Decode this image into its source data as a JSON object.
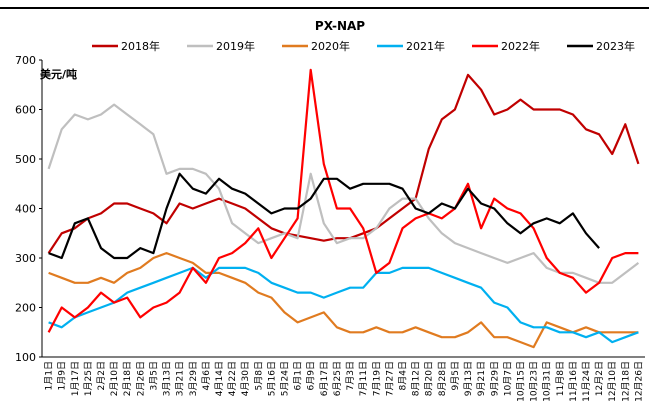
{
  "chart_data": {
    "type": "line",
    "title": "PX-NAP",
    "y_label": "美元/吨",
    "categories": [
      "1月1日",
      "1月9日",
      "1月17日",
      "1月25日",
      "2月2日",
      "2月10日",
      "2月18日",
      "2月26日",
      "3月5日",
      "3月13日",
      "3月21日",
      "3月29日",
      "4月6日",
      "4月14日",
      "4月22日",
      "4月30日",
      "5月8日",
      "5月16日",
      "5月24日",
      "6月1日",
      "6月9日",
      "6月17日",
      "6月25日",
      "7月3日",
      "7月11日",
      "7月19日",
      "7月27日",
      "8月4日",
      "8月12日",
      "8月20日",
      "8月28日",
      "9月5日",
      "9月13日",
      "9月21日",
      "9月29日",
      "10月7日",
      "10月15日",
      "10月23日",
      "10月31日",
      "11月8日",
      "11月16日",
      "11月24日",
      "12月2日",
      "12月10日",
      "12月18日",
      "12月26日"
    ],
    "series": [
      {
        "name": "2018年",
        "color": "#c00000",
        "values": [
          310,
          350,
          360,
          380,
          390,
          410,
          410,
          400,
          390,
          370,
          410,
          400,
          410,
          420,
          410,
          400,
          380,
          360,
          350,
          345,
          340,
          335,
          340,
          340,
          350,
          360,
          380,
          400,
          420,
          520,
          580,
          600,
          670,
          640,
          590,
          600,
          620,
          600,
          600,
          600,
          590,
          560,
          550,
          510,
          570,
          490
        ]
      },
      {
        "name": "2019年",
        "color": "#bfbfbf",
        "values": [
          480,
          560,
          590,
          580,
          590,
          610,
          590,
          570,
          550,
          470,
          480,
          480,
          470,
          440,
          370,
          350,
          330,
          340,
          350,
          340,
          470,
          370,
          330,
          340,
          340,
          360,
          400,
          420,
          420,
          380,
          350,
          330,
          320,
          310,
          300,
          290,
          300,
          310,
          280,
          270,
          270,
          260,
          250,
          250,
          270,
          290
        ]
      },
      {
        "name": "2020年",
        "color": "#e07b20",
        "values": [
          270,
          260,
          250,
          250,
          260,
          250,
          270,
          280,
          300,
          310,
          300,
          290,
          270,
          270,
          260,
          250,
          230,
          220,
          190,
          170,
          180,
          190,
          160,
          150,
          150,
          160,
          150,
          150,
          160,
          150,
          140,
          140,
          150,
          170,
          140,
          140,
          130,
          120,
          170,
          160,
          150,
          160,
          150,
          150,
          150,
          150
        ]
      },
      {
        "name": "2021年",
        "color": "#00b0f0",
        "values": [
          170,
          160,
          180,
          190,
          200,
          210,
          230,
          240,
          250,
          260,
          270,
          280,
          260,
          280,
          280,
          280,
          270,
          250,
          240,
          230,
          230,
          220,
          230,
          240,
          240,
          270,
          270,
          280,
          280,
          280,
          270,
          260,
          250,
          240,
          210,
          200,
          170,
          160,
          160,
          150,
          150,
          140,
          150,
          130,
          140,
          150
        ]
      },
      {
        "name": "2022年",
        "color": "#ff0000",
        "values": [
          150,
          200,
          180,
          200,
          230,
          210,
          220,
          180,
          200,
          210,
          230,
          280,
          250,
          300,
          310,
          330,
          360,
          300,
          340,
          380,
          680,
          490,
          400,
          400,
          360,
          270,
          290,
          360,
          380,
          390,
          380,
          400,
          450,
          360,
          420,
          400,
          390,
          360,
          300,
          270,
          260,
          230,
          250,
          300,
          310,
          310
        ]
      },
      {
        "name": "2023年",
        "color": "#000000",
        "values": [
          310,
          300,
          370,
          380,
          320,
          300,
          300,
          320,
          310,
          400,
          470,
          440,
          430,
          460,
          440,
          430,
          410,
          390,
          400,
          400,
          420,
          460,
          460,
          440,
          450,
          450,
          450,
          440,
          400,
          390,
          410,
          400,
          440,
          410,
          400,
          370,
          350,
          370,
          380,
          370,
          390,
          350,
          320,
          null,
          null,
          null
        ]
      }
    ],
    "ylim": [
      100,
      700
    ],
    "yticks": [
      100,
      200,
      300,
      400,
      500,
      600,
      700
    ],
    "grid": false
  }
}
